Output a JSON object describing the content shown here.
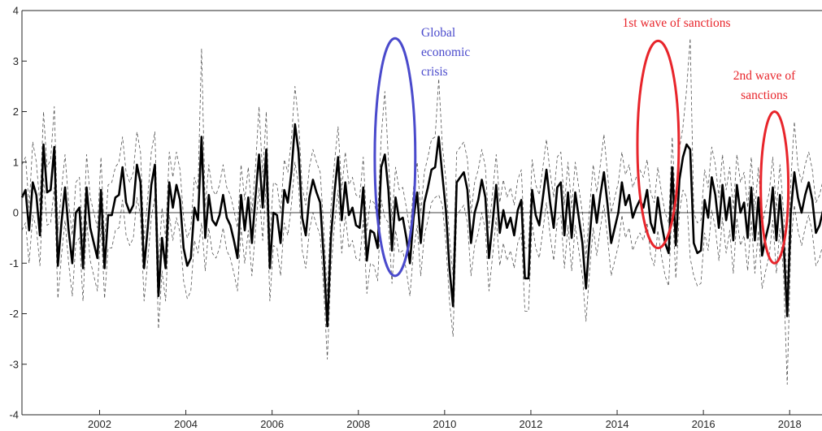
{
  "chart_data": {
    "type": "line",
    "title": "",
    "xlabel": "",
    "ylabel": "",
    "xlim": [
      2000.2,
      2018.75
    ],
    "ylim": [
      -4,
      4
    ],
    "x_ticks": [
      2002,
      2004,
      2006,
      2008,
      2010,
      2012,
      2014,
      2016,
      2018
    ],
    "y_ticks": [
      -4,
      -3,
      -2,
      -1,
      0,
      1,
      2,
      3,
      4
    ],
    "grid": false,
    "zero_line": true,
    "x_step_years": 0.0833,
    "series": [
      {
        "style": "solid-thick",
        "color": "#000000",
        "values": [
          0.3,
          0.45,
          -0.35,
          0.6,
          0.35,
          -0.45,
          1.35,
          0.4,
          0.45,
          1.3,
          -1.05,
          -0.2,
          0.5,
          -0.35,
          -1.0,
          0.0,
          0.1,
          -1.1,
          0.5,
          -0.3,
          -0.6,
          -0.9,
          0.45,
          -1.1,
          -0.05,
          -0.05,
          0.3,
          0.35,
          0.9,
          0.2,
          0.0,
          0.15,
          0.95,
          0.6,
          -1.1,
          -0.3,
          0.55,
          0.95,
          -1.65,
          -0.5,
          -1.1,
          0.6,
          0.1,
          0.55,
          0.25,
          -0.7,
          -1.05,
          -0.9,
          0.1,
          -0.15,
          1.5,
          -0.5,
          0.35,
          -0.15,
          -0.25,
          -0.05,
          0.35,
          -0.1,
          -0.25,
          -0.55,
          -0.9,
          0.35,
          -0.35,
          0.3,
          -0.6,
          0.3,
          1.15,
          0.1,
          1.25,
          -1.1,
          0.0,
          -0.05,
          -0.6,
          0.45,
          0.2,
          0.8,
          1.75,
          1.2,
          -0.1,
          -0.45,
          0.3,
          0.65,
          0.4,
          0.2,
          -0.9,
          -2.25,
          -0.5,
          0.4,
          1.1,
          -0.15,
          0.6,
          -0.05,
          0.1,
          -0.25,
          -0.3,
          0.5,
          -0.95,
          -0.35,
          -0.4,
          -0.7,
          0.9,
          1.15,
          0.45,
          -0.75,
          0.3,
          -0.15,
          -0.1,
          -0.5,
          -1.0,
          -0.1,
          0.4,
          -0.6,
          0.2,
          0.5,
          0.85,
          0.9,
          1.5,
          0.75,
          0.05,
          -1.1,
          -1.85,
          0.6,
          0.7,
          0.8,
          0.45,
          -0.6,
          0.0,
          0.25,
          0.65,
          0.3,
          -0.9,
          -0.2,
          0.55,
          -0.4,
          0.05,
          -0.3,
          -0.1,
          -0.45,
          0.05,
          0.25,
          -1.3,
          -1.3,
          0.45,
          -0.05,
          -0.25,
          0.3,
          0.85,
          0.2,
          -0.3,
          0.5,
          0.6,
          -0.45,
          0.4,
          -0.5,
          0.4,
          -0.1,
          -0.6,
          -1.5,
          -0.5,
          0.35,
          -0.2,
          0.35,
          0.8,
          0.15,
          -0.6,
          -0.3,
          0.0,
          0.6,
          0.15,
          0.35,
          -0.1,
          0.1,
          0.25,
          0.1,
          0.45,
          -0.2,
          -0.4,
          0.3,
          -0.2,
          -0.6,
          -0.8,
          0.9,
          -0.65,
          0.65,
          1.1,
          1.35,
          1.25,
          -0.6,
          -0.8,
          -0.75,
          0.25,
          -0.1,
          0.7,
          0.35,
          -0.3,
          0.55,
          -0.15,
          0.3,
          -0.55,
          0.55,
          0.0,
          0.2,
          -0.5,
          0.5,
          -0.55,
          0.3,
          -0.85,
          -0.5,
          -0.2,
          0.5,
          -0.55,
          0.35,
          -0.6,
          -2.05,
          0.0,
          0.8,
          0.3,
          0.0,
          0.35,
          0.6,
          0.25,
          -0.4,
          -0.25,
          0.05,
          0.75,
          -0.25,
          -0.35,
          -0.9,
          0.75,
          0.4,
          0.0
        ]
      },
      {
        "style": "dashed-upper",
        "color": "#555555",
        "values": [
          0.95,
          1.1,
          0.1,
          1.4,
          1.0,
          0.15,
          2.0,
          0.9,
          1.05,
          2.1,
          -0.4,
          0.45,
          1.15,
          0.2,
          -0.45,
          0.6,
          0.7,
          -0.6,
          1.15,
          0.3,
          0.0,
          -0.3,
          1.1,
          -0.55,
          0.55,
          0.6,
          0.9,
          1.0,
          1.5,
          0.8,
          0.6,
          0.8,
          1.6,
          1.2,
          -0.55,
          0.3,
          1.2,
          1.6,
          -1.05,
          0.1,
          -0.5,
          1.2,
          0.7,
          1.2,
          0.85,
          -0.1,
          -0.5,
          -0.3,
          0.7,
          0.45,
          3.25,
          0.1,
          0.95,
          0.45,
          0.35,
          0.55,
          0.95,
          0.5,
          0.35,
          0.05,
          -0.3,
          0.95,
          0.25,
          0.9,
          0.0,
          0.9,
          2.1,
          0.7,
          2.0,
          -0.5,
          0.6,
          0.55,
          0.0,
          1.05,
          0.8,
          1.45,
          2.5,
          1.8,
          0.5,
          0.15,
          0.9,
          1.25,
          1.0,
          0.8,
          -0.3,
          -1.65,
          0.1,
          1.0,
          1.7,
          0.45,
          1.2,
          0.55,
          0.7,
          0.35,
          0.3,
          1.1,
          -0.35,
          0.25,
          0.2,
          -0.1,
          1.5,
          2.4,
          1.05,
          -0.15,
          0.9,
          0.45,
          0.5,
          0.1,
          -0.4,
          0.5,
          1.0,
          0.0,
          0.8,
          1.1,
          1.45,
          1.5,
          2.65,
          1.35,
          0.65,
          -0.5,
          -1.25,
          1.2,
          1.3,
          1.4,
          1.05,
          0.0,
          0.6,
          0.85,
          1.25,
          0.9,
          -0.3,
          0.4,
          1.15,
          0.2,
          0.65,
          0.3,
          0.5,
          0.15,
          0.65,
          0.85,
          -0.7,
          -0.7,
          1.05,
          0.55,
          0.35,
          0.9,
          1.45,
          0.8,
          0.3,
          1.1,
          1.2,
          0.15,
          1.0,
          0.1,
          1.0,
          0.5,
          0.0,
          -0.9,
          0.1,
          0.95,
          0.4,
          0.95,
          1.55,
          0.75,
          0.0,
          0.3,
          0.6,
          1.2,
          0.75,
          0.95,
          0.5,
          0.7,
          0.85,
          0.7,
          1.05,
          0.4,
          0.2,
          0.9,
          0.4,
          0.0,
          -0.2,
          1.5,
          -0.05,
          1.25,
          1.7,
          2.45,
          3.45,
          0.0,
          -0.2,
          -0.15,
          0.85,
          0.5,
          1.3,
          0.95,
          0.3,
          1.15,
          0.45,
          0.9,
          0.05,
          1.15,
          0.6,
          0.8,
          0.1,
          1.1,
          0.05,
          0.9,
          -0.25,
          0.1,
          0.4,
          1.1,
          0.05,
          0.95,
          0.0,
          -1.45,
          0.6,
          1.8,
          0.9,
          0.6,
          0.95,
          1.2,
          0.85,
          0.2,
          0.35,
          0.65,
          1.35,
          0.35,
          0.25,
          -0.3,
          1.35,
          1.0,
          0.6
        ]
      },
      {
        "style": "dashed-lower",
        "color": "#555555",
        "values": [
          -0.35,
          -0.2,
          -1.0,
          -0.05,
          -0.3,
          -1.05,
          0.7,
          -0.25,
          -0.2,
          0.5,
          -1.7,
          -0.85,
          -0.15,
          -1.0,
          -1.65,
          -0.6,
          -0.5,
          -1.75,
          -0.15,
          -0.95,
          -1.25,
          -1.55,
          -0.2,
          -1.7,
          -0.7,
          -0.7,
          -0.35,
          -0.3,
          0.25,
          -0.45,
          -0.65,
          -0.5,
          0.3,
          -0.05,
          -1.75,
          -0.95,
          -0.1,
          0.3,
          -2.3,
          -1.15,
          -1.75,
          -0.05,
          -0.55,
          -0.1,
          -0.4,
          -1.35,
          -1.7,
          -1.55,
          -0.55,
          -0.8,
          -0.2,
          -1.15,
          -0.3,
          -0.8,
          -0.9,
          -0.7,
          -0.3,
          -0.75,
          -0.9,
          -1.2,
          -1.55,
          -0.3,
          -1.0,
          -0.35,
          -1.25,
          -0.35,
          0.5,
          -0.55,
          0.6,
          -1.75,
          -0.65,
          -0.7,
          -1.25,
          -0.2,
          -0.45,
          0.15,
          1.0,
          0.55,
          -0.75,
          -1.1,
          -0.35,
          0.0,
          -0.25,
          -0.45,
          -1.55,
          -2.9,
          -1.15,
          -0.25,
          0.45,
          -0.8,
          -0.05,
          -0.7,
          -0.55,
          -0.9,
          -0.95,
          -0.15,
          -1.6,
          -1.0,
          -1.05,
          -1.35,
          0.25,
          -0.1,
          -0.2,
          -1.4,
          -0.35,
          -0.8,
          -0.75,
          -1.15,
          -1.65,
          -0.75,
          -0.25,
          -1.25,
          -0.45,
          -0.15,
          0.2,
          0.3,
          0.35,
          0.15,
          -0.6,
          -1.75,
          -2.45,
          -0.05,
          0.05,
          0.15,
          -0.2,
          -1.25,
          -0.65,
          -0.4,
          0.0,
          -0.35,
          -1.55,
          -0.85,
          -0.1,
          -1.05,
          -0.6,
          -0.95,
          -0.75,
          -1.1,
          -0.6,
          -0.4,
          -1.95,
          -1.95,
          -0.2,
          -0.7,
          -0.9,
          -0.35,
          0.2,
          -0.45,
          -0.95,
          -0.15,
          -0.05,
          -1.1,
          -0.25,
          -1.15,
          -0.25,
          -0.75,
          -1.25,
          -2.15,
          -1.15,
          -0.3,
          -0.85,
          -0.3,
          0.15,
          -0.5,
          -1.25,
          -0.95,
          -0.65,
          -0.05,
          -0.5,
          -0.3,
          -0.75,
          -0.55,
          -0.4,
          -0.55,
          -0.2,
          -0.85,
          -1.05,
          -0.35,
          -0.85,
          -1.25,
          -1.45,
          0.25,
          -1.3,
          0.0,
          0.45,
          0.3,
          -0.9,
          -1.25,
          -1.45,
          -1.4,
          -0.4,
          -0.75,
          0.05,
          -0.3,
          -0.95,
          -0.1,
          -0.8,
          -0.35,
          -1.2,
          -0.1,
          -0.65,
          -0.45,
          -1.15,
          -0.15,
          -1.2,
          -0.35,
          -1.5,
          -1.15,
          -0.85,
          -0.15,
          -1.2,
          -0.3,
          -1.25,
          -3.4,
          -0.65,
          0.15,
          -0.35,
          -0.65,
          -0.3,
          -0.05,
          -0.4,
          -1.05,
          -0.9,
          -0.6,
          0.1,
          -0.9,
          -1.0,
          -1.55,
          0.1,
          -0.25,
          -0.65
        ]
      }
    ],
    "annotations": [
      {
        "lines": [
          "Global",
          "economic",
          "crisis"
        ],
        "color": "#4a4acc",
        "ellipse": {
          "x_center": 2008.85,
          "y_center": 1.1,
          "x_halfwidth": 0.47,
          "y_halfheight": 2.35
        }
      },
      {
        "lines": [
          "1st wave of sanctions"
        ],
        "color": "#e8252b",
        "ellipse": {
          "x_center": 2014.95,
          "y_center": 1.35,
          "x_halfwidth": 0.48,
          "y_halfheight": 2.05
        }
      },
      {
        "lines": [
          "2nd wave of",
          "sanctions"
        ],
        "color": "#e8252b",
        "ellipse": {
          "x_center": 2017.65,
          "y_center": 0.5,
          "x_halfwidth": 0.32,
          "y_halfheight": 1.5
        }
      }
    ]
  }
}
